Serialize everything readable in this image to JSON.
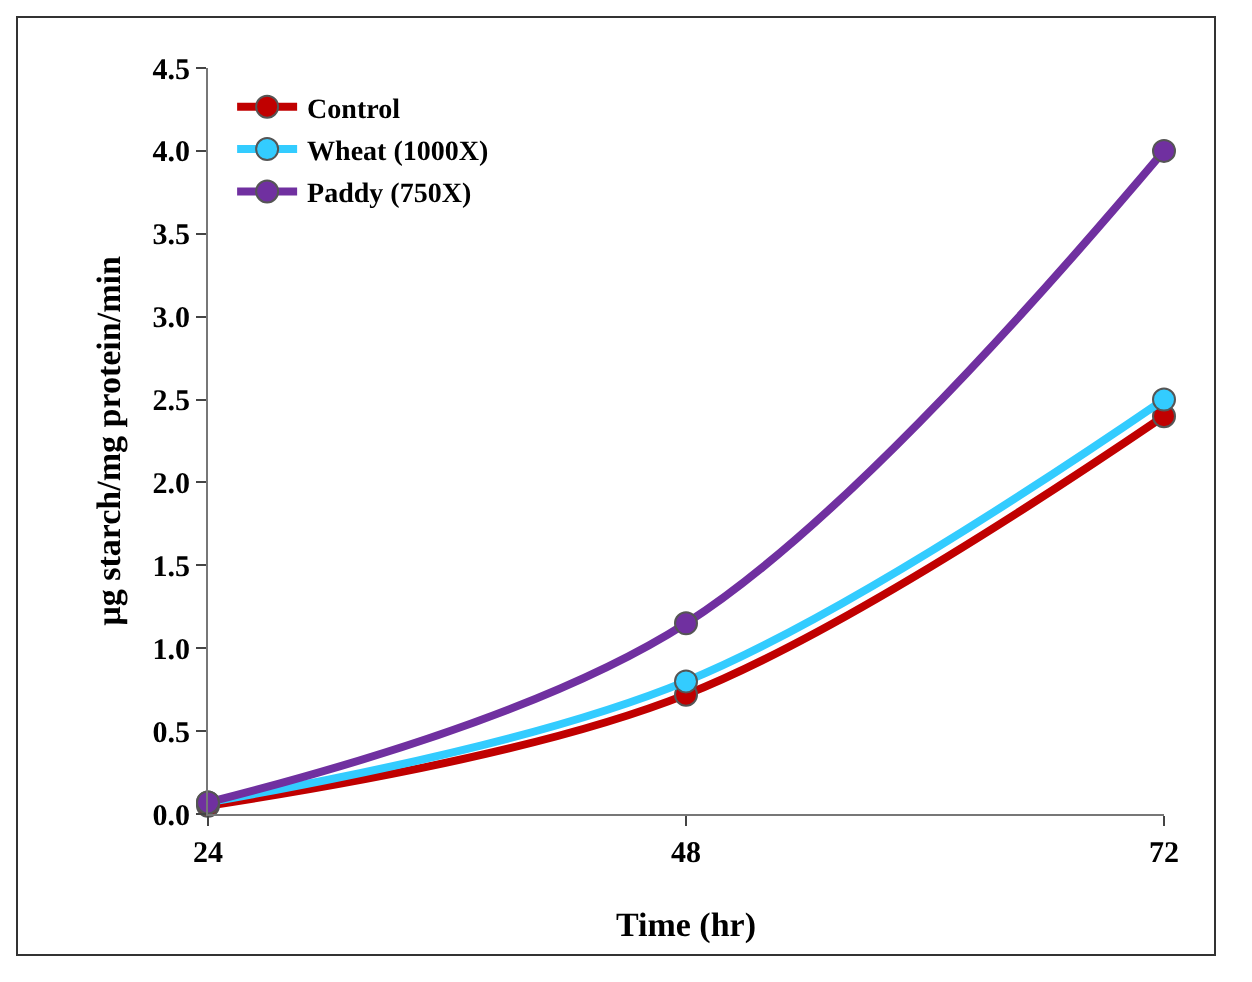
{
  "chart_data": {
    "type": "line",
    "xlabel": "Time (hr)",
    "ylabel": "µg starch/mg protein/min",
    "x": [
      24,
      48,
      72
    ],
    "xlim": [
      24,
      72
    ],
    "xticks": [
      24,
      48,
      72
    ],
    "ylim": [
      0,
      4.5
    ],
    "yticks": [
      {
        "value": 0,
        "label": "0.0"
      },
      {
        "value": 0.5,
        "label": "0.5"
      },
      {
        "value": 1,
        "label": "1.0"
      },
      {
        "value": 1.5,
        "label": "1.5"
      },
      {
        "value": 2,
        "label": "2.0"
      },
      {
        "value": 2.5,
        "label": "2.5"
      },
      {
        "value": 3,
        "label": "3.0"
      },
      {
        "value": 3.5,
        "label": "3.5"
      },
      {
        "value": 4,
        "label": "4.0"
      },
      {
        "value": 4.5,
        "label": "4.5"
      }
    ],
    "series": [
      {
        "name": "Control",
        "color": "#c00000",
        "values": [
          0.05,
          0.72,
          2.4
        ]
      },
      {
        "name": "Wheat (1000X)",
        "color": "#33ccff",
        "values": [
          0.07,
          0.8,
          2.5
        ]
      },
      {
        "name": "Paddy (750X)",
        "color": "#7030a0",
        "values": [
          0.07,
          1.15,
          4.0
        ]
      }
    ],
    "marker": "circle",
    "grid": false,
    "legend": "top left"
  }
}
